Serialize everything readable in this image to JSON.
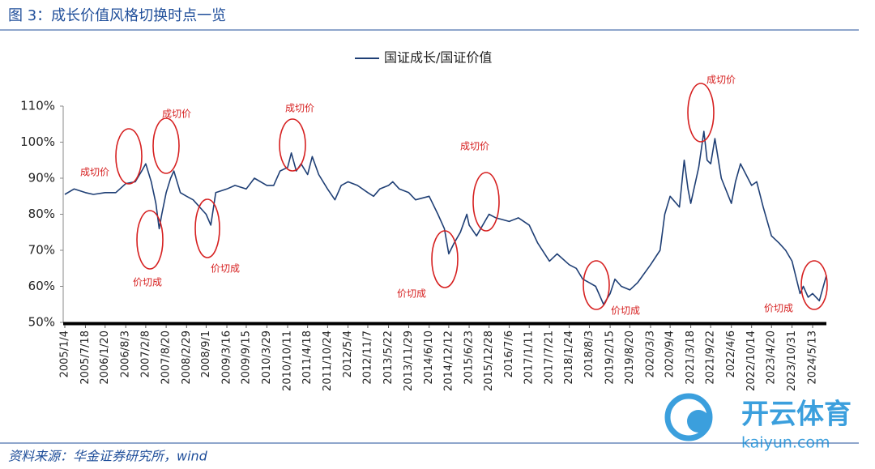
{
  "header": {
    "title": "图 3：成长价值风格切换时点一览"
  },
  "chart_data": {
    "type": "line",
    "x": [
      "2005/1/4",
      "2005/4/1",
      "2005/7/18",
      "2005/10/1",
      "2006/1/20",
      "2006/5/1",
      "2006/8/3",
      "2006/11/1",
      "2007/1/1",
      "2007/2/8",
      "2007/4/1",
      "2007/5/15",
      "2007/6/15",
      "2007/7/10",
      "2007/8/20",
      "2007/10/1",
      "2007/11/1",
      "2008/1/1",
      "2008/2/29",
      "2008/5/1",
      "2008/7/1",
      "2008/9/1",
      "2008/10/15",
      "2008/12/1",
      "2009/3/16",
      "2009/6/1",
      "2009/9/15",
      "2009/12/1",
      "2010/3/29",
      "2010/6/1",
      "2010/8/1",
      "2010/10/11",
      "2010/11/15",
      "2011/1/1",
      "2011/2/15",
      "2011/4/18",
      "2011/6/1",
      "2011/8/1",
      "2011/10/24",
      "2012/1/1",
      "2012/3/1",
      "2012/5/4",
      "2012/8/1",
      "2012/11/7",
      "2013/1/1",
      "2013/3/1",
      "2013/5/22",
      "2013/7/1",
      "2013/9/1",
      "2013/11/29",
      "2014/2/1",
      "2014/6/10",
      "2014/9/1",
      "2014/11/1",
      "2014/12/12",
      "2015/2/1",
      "2015/4/1",
      "2015/6/1",
      "2015/6/23",
      "2015/9/1",
      "2015/12/28",
      "2016/3/1",
      "2016/7/6",
      "2016/10/1",
      "2017/1/11",
      "2017/4/1",
      "2017/7/21",
      "2017/10/1",
      "2018/1/24",
      "2018/4/1",
      "2018/6/1",
      "2018/8/3",
      "2018/10/1",
      "2018/12/15",
      "2019/2/15",
      "2019/4/1",
      "2019/6/1",
      "2019/8/20",
      "2019/11/1",
      "2020/3/3",
      "2020/6/1",
      "2020/7/15",
      "2020/9/4",
      "2020/12/1",
      "2021/1/15",
      "2021/2/20",
      "2021/3/18",
      "2021/6/1",
      "2021/7/20",
      "2021/8/20",
      "2021/9/22",
      "2021/11/1",
      "2022/1/1",
      "2022/4/6",
      "2022/5/15",
      "2022/7/1",
      "2022/10/14",
      "2022/12/1",
      "2023/2/1",
      "2023/4/20",
      "2023/7/1",
      "2023/9/1",
      "2023/10/31",
      "2024/1/15",
      "2024/2/15",
      "2024/4/1",
      "2024/5/13",
      "2024/7/15",
      "2024/9/20"
    ],
    "series": [
      {
        "name": "国证成长/国证价值",
        "color": "#1f3f75",
        "values": [
          85.5,
          87,
          86,
          85.5,
          86,
          86,
          88.5,
          89,
          92,
          94,
          89,
          83,
          76,
          80,
          86,
          90,
          92,
          86,
          85,
          84,
          82,
          80,
          77,
          86,
          87,
          88,
          87,
          90,
          88,
          88,
          92,
          93,
          97,
          92,
          94,
          91,
          96,
          91,
          87,
          84,
          88,
          89,
          88,
          86,
          85,
          87,
          88,
          89,
          87,
          86,
          84,
          85,
          80,
          76,
          69,
          72,
          75,
          80,
          77,
          74,
          80,
          79,
          78,
          79,
          77,
          72,
          67,
          69,
          66,
          65,
          62,
          61,
          60,
          55,
          58,
          62,
          60,
          59,
          61,
          66,
          70,
          80,
          85,
          82,
          95,
          87,
          83,
          93,
          103,
          95,
          94,
          101,
          90,
          83,
          89,
          94,
          88,
          89,
          82,
          74,
          72,
          70,
          67,
          58,
          60,
          57,
          58,
          56,
          63
        ]
      }
    ],
    "xlim": [
      "2005/1/4",
      "2024/9/20"
    ],
    "xticks": [
      "2005/1/4",
      "2005/7/18",
      "2006/1/20",
      "2006/8/3",
      "2007/2/8",
      "2007/8/20",
      "2008/2/29",
      "2008/9/1",
      "2009/3/16",
      "2009/9/15",
      "2010/3/29",
      "2010/10/11",
      "2011/4/18",
      "2011/10/24",
      "2012/5/4",
      "2012/11/7",
      "2013/5/22",
      "2013/11/29",
      "2014/6/10",
      "2014/12/12",
      "2015/6/23",
      "2015/12/28",
      "2016/7/6",
      "2017/1/11",
      "2017/7/21",
      "2018/1/24",
      "2018/8/3",
      "2019/2/15",
      "2019/8/20",
      "2020/3/3",
      "2020/9/4",
      "2021/3/18",
      "2021/9/22",
      "2022/4/6",
      "2022/10/14",
      "2023/4/20",
      "2023/10/31",
      "2024/5/13"
    ],
    "ylim": [
      50,
      110
    ],
    "yticks": [
      {
        "value": 50,
        "label": "50%"
      },
      {
        "value": 60,
        "label": "60%"
      },
      {
        "value": 70,
        "label": "70%"
      },
      {
        "value": 80,
        "label": "80%"
      },
      {
        "value": 90,
        "label": "90%"
      },
      {
        "value": 100,
        "label": "100%"
      },
      {
        "value": 110,
        "label": "110%"
      }
    ],
    "annotations": [
      "成切价",
      "价切成",
      "成切价",
      "价切成",
      "成切价",
      "价切成",
      "成切价",
      "价切成",
      "成切价",
      "价切成"
    ],
    "grid": false
  },
  "footer": {
    "source": "资料来源：华金证券研究所，wind"
  },
  "watermark": {
    "name": "开云体育",
    "url": "kaiyun.com"
  }
}
